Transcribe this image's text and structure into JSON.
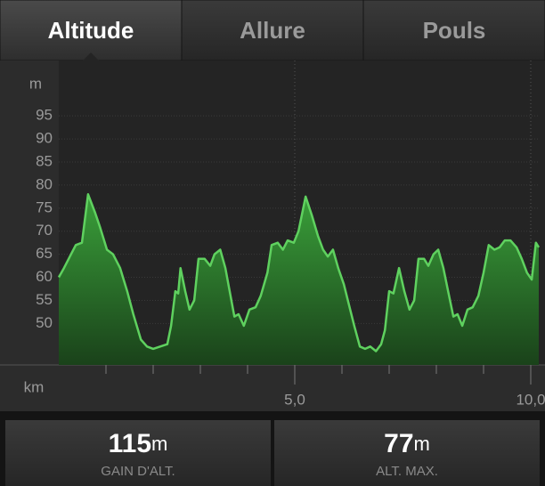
{
  "tabs": [
    {
      "label": "Altitude",
      "selected": true
    },
    {
      "label": "Allure",
      "selected": false
    },
    {
      "label": "Pouls",
      "selected": false
    }
  ],
  "chart_data": {
    "type": "area",
    "ylabel": "m",
    "xlabel": "km",
    "x": [
      0.0,
      0.11,
      0.26,
      0.36,
      0.49,
      0.62,
      0.77,
      0.87,
      1.02,
      1.15,
      1.3,
      1.45,
      1.58,
      1.74,
      1.87,
      2.0,
      2.15,
      2.3,
      2.38,
      2.47,
      2.53,
      2.58,
      2.68,
      2.77,
      2.87,
      2.96,
      3.09,
      3.21,
      3.3,
      3.42,
      3.53,
      3.62,
      3.72,
      3.81,
      3.92,
      4.04,
      4.17,
      4.28,
      4.42,
      4.51,
      4.64,
      4.75,
      4.85,
      4.98,
      5.08,
      5.23,
      5.36,
      5.49,
      5.6,
      5.7,
      5.81,
      5.92,
      6.04,
      6.15,
      6.26,
      6.38,
      6.49,
      6.6,
      6.72,
      6.83,
      6.91,
      7.0,
      7.09,
      7.21,
      7.32,
      7.43,
      7.53,
      7.62,
      7.74,
      7.83,
      7.94,
      8.04,
      8.15,
      8.25,
      8.36,
      8.45,
      8.55,
      8.66,
      8.77,
      8.89,
      9.0,
      9.11,
      9.23,
      9.34,
      9.45,
      9.57,
      9.7,
      9.81,
      9.92,
      10.02,
      10.11,
      10.17
    ],
    "series": [
      {
        "color": "#5fd15f",
        "values": [
          60,
          62,
          65,
          67,
          67.5,
          78,
          74,
          71,
          66,
          65,
          62,
          57,
          52,
          46.5,
          45,
          44.5,
          45,
          45.5,
          49.5,
          57,
          56.5,
          62,
          57,
          53,
          55,
          64,
          64,
          62.5,
          65,
          66,
          62,
          57,
          51.5,
          52,
          49.5,
          53,
          53.5,
          56,
          61,
          67,
          67.5,
          66,
          68,
          67.5,
          70,
          77.5,
          73.5,
          69,
          66,
          64.5,
          66,
          62,
          58.5,
          54,
          49.5,
          45,
          44.5,
          45,
          44,
          45.5,
          48.5,
          57,
          56.5,
          62,
          57,
          53,
          55,
          64,
          64,
          62.5,
          65,
          66,
          62,
          57,
          51.5,
          52,
          49.5,
          53,
          53.5,
          56,
          61,
          67,
          66,
          66.5,
          68,
          68,
          66.5,
          64,
          61,
          59.5,
          67.5,
          66.5
        ]
      }
    ],
    "xlim": [
      0,
      10.17
    ],
    "ylim": [
      41,
      107
    ],
    "xticks": [
      {
        "value": 5,
        "label": "5,0"
      },
      {
        "value": 10,
        "label": "10,0"
      }
    ],
    "xminorticks": [
      1,
      2,
      3,
      4,
      6,
      7,
      8,
      9
    ],
    "yticks": [
      50,
      55,
      60,
      65,
      70,
      75,
      80,
      85,
      90,
      95
    ],
    "grid": true
  },
  "stats": [
    {
      "value": "115",
      "unit": "m",
      "label": "GAIN D'ALT."
    },
    {
      "value": "77",
      "unit": "m",
      "label": "ALT. MAX."
    }
  ]
}
